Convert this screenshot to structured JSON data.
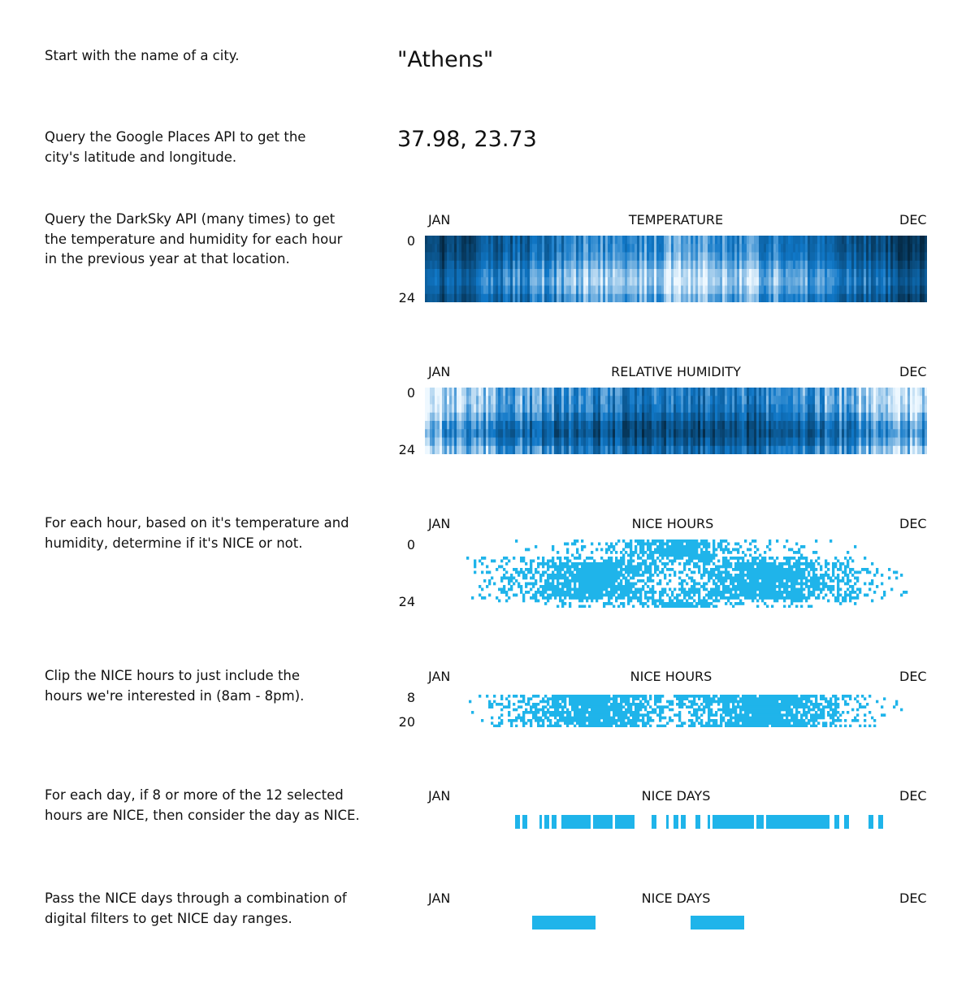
{
  "steps": [
    "Start with the name of a city.",
    "Query the Google Places API to get the city's latitude and longitude.",
    "Query the DarkSky API (many times) to get the temperature and humidity for each hour in the previous year at that location.",
    "For each hour, based on it's temperature and humidity, determine if it's NICE or not.",
    "Clip the NICE hours to just include the hours we're interested in (8am - 8pm).",
    "For each day, if 8 or more of the 12 selected hours are NICE, then consider the day as NICE.",
    "Pass the NICE days through a combination of digital filters to get NICE day ranges."
  ],
  "city": "\"Athens\"",
  "coords": "37.98, 23.73",
  "axis": {
    "start": "JAN",
    "end": "DEC"
  },
  "colors": {
    "accent": "#1fb4ea",
    "dark": "#062c44"
  },
  "chart_data": [
    {
      "type": "heatmap",
      "title": "TEMPERATURE",
      "x_range": [
        "JAN",
        "DEC"
      ],
      "y_ticks": [
        "0",
        "24"
      ],
      "colormap": "dark-to-light blue"
    },
    {
      "type": "heatmap",
      "title": "RELATIVE HUMIDITY",
      "x_range": [
        "JAN",
        "DEC"
      ],
      "y_ticks": [
        "0",
        "24"
      ],
      "colormap": "light-to-dark blue"
    },
    {
      "type": "heatmap",
      "title": "NICE HOURS",
      "x_range": [
        "JAN",
        "DEC"
      ],
      "y_ticks": [
        "0",
        "24"
      ]
    },
    {
      "type": "heatmap",
      "title": "NICE HOURS",
      "x_range": [
        "JAN",
        "DEC"
      ],
      "y_ticks": [
        "8",
        "20"
      ]
    },
    {
      "type": "bar",
      "title": "NICE DAYS",
      "x_range": [
        "JAN",
        "DEC"
      ],
      "segments": [
        [
          37,
          38
        ],
        [
          40,
          41
        ],
        [
          47,
          47
        ],
        [
          49,
          50
        ],
        [
          52,
          53
        ],
        [
          56,
          67
        ],
        [
          69,
          76
        ],
        [
          78,
          85
        ],
        [
          93,
          94
        ],
        [
          99,
          99
        ],
        [
          102,
          103
        ],
        [
          105,
          106
        ],
        [
          111,
          112
        ],
        [
          116,
          116
        ],
        [
          118,
          126
        ],
        [
          127,
          134
        ],
        [
          136,
          138
        ],
        [
          140,
          155
        ],
        [
          155,
          165
        ],
        [
          168,
          169
        ],
        [
          172,
          173
        ],
        [
          182,
          183
        ],
        [
          186,
          187
        ]
      ]
    },
    {
      "type": "bar",
      "title": "NICE DAYS",
      "x_range": [
        "JAN",
        "DEC"
      ],
      "segments": [
        [
          44,
          69
        ],
        [
          109,
          130
        ]
      ]
    }
  ]
}
